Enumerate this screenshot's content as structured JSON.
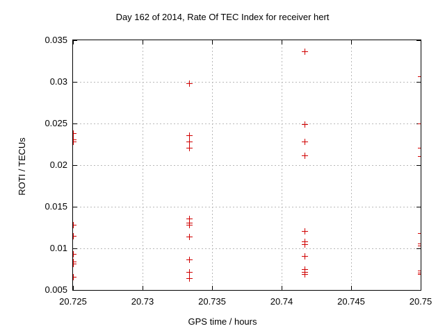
{
  "chart_data": {
    "type": "scatter",
    "title": "Day 162 of 2014, Rate Of TEC Index for receiver hert",
    "xlabel": "GPS time / hours",
    "ylabel": "ROTI / TECUs",
    "xlim": [
      20.725,
      20.75
    ],
    "ylim": [
      0.005,
      0.035
    ],
    "xticks": {
      "values": [
        20.725,
        20.73,
        20.735,
        20.74,
        20.745,
        20.75
      ],
      "labels": [
        "20.725",
        "20.73",
        "20.735",
        "20.74",
        "20.745",
        "20.75"
      ]
    },
    "yticks": {
      "values": [
        0.005,
        0.01,
        0.015,
        0.02,
        0.025,
        0.03,
        0.035
      ],
      "labels": [
        "0.005",
        "0.01",
        "0.015",
        "0.02",
        "0.025",
        "0.03",
        "0.035"
      ]
    },
    "grid": "dotted",
    "grid_color": "#b8b8b8",
    "axis_color": "#000000",
    "background": "#ffffff",
    "legend": "none",
    "series": [
      {
        "name": "ROTI",
        "marker": "plus",
        "color": "#d00000",
        "points": [
          [
            20.725,
            0.0238
          ],
          [
            20.725,
            0.0231
          ],
          [
            20.725,
            0.0228
          ],
          [
            20.725,
            0.0128
          ],
          [
            20.725,
            0.0115
          ],
          [
            20.725,
            0.0093
          ],
          [
            20.725,
            0.0084
          ],
          [
            20.725,
            0.0082
          ],
          [
            20.725,
            0.0066
          ],
          [
            20.733333,
            0.0298
          ],
          [
            20.733333,
            0.0236
          ],
          [
            20.733333,
            0.0228
          ],
          [
            20.733333,
            0.0221
          ],
          [
            20.733333,
            0.0136
          ],
          [
            20.733333,
            0.0131
          ],
          [
            20.733333,
            0.0128
          ],
          [
            20.733333,
            0.0114
          ],
          [
            20.733333,
            0.0087
          ],
          [
            20.733333,
            0.0072
          ],
          [
            20.733333,
            0.0064
          ],
          [
            20.741667,
            0.0337
          ],
          [
            20.741667,
            0.0249
          ],
          [
            20.741667,
            0.0228
          ],
          [
            20.741667,
            0.0212
          ],
          [
            20.741667,
            0.0121
          ],
          [
            20.741667,
            0.0108
          ],
          [
            20.741667,
            0.0105
          ],
          [
            20.741667,
            0.0091
          ],
          [
            20.741667,
            0.0075
          ],
          [
            20.741667,
            0.0072
          ],
          [
            20.741667,
            0.0069
          ],
          [
            20.75,
            0.0307
          ],
          [
            20.75,
            0.025
          ],
          [
            20.75,
            0.0221
          ],
          [
            20.75,
            0.0211
          ],
          [
            20.75,
            0.0118
          ],
          [
            20.75,
            0.0106
          ],
          [
            20.75,
            0.0103
          ],
          [
            20.75,
            0.0073
          ],
          [
            20.75,
            0.0071
          ],
          [
            20.75,
            0.0069
          ]
        ]
      }
    ]
  }
}
